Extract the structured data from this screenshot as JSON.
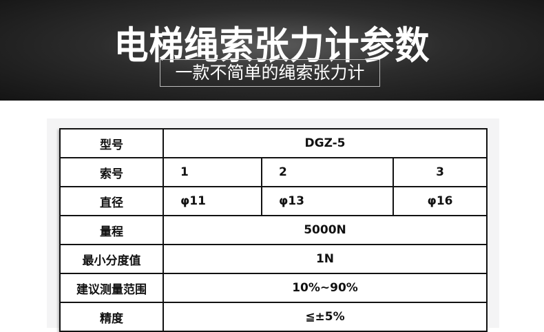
{
  "header": {
    "title": "电梯绳索张力计参数",
    "subtitle": "一款不简单的绳索张力计"
  },
  "specs": {
    "model": {
      "label": "型号",
      "value": "DGZ-5"
    },
    "cable_no": {
      "label": "索号",
      "values": [
        "1",
        "2",
        "3"
      ]
    },
    "diameter": {
      "label": "直径",
      "values": [
        "φ11",
        "φ13",
        "φ16"
      ]
    },
    "range": {
      "label": "量程",
      "value": "5000N"
    },
    "min_division": {
      "label": "最小分度值",
      "value": "1N"
    },
    "recommended_range": {
      "label": "建议测量范围",
      "value": "10%~90%"
    },
    "accuracy": {
      "label": "精度",
      "value": "≦±5%"
    }
  }
}
